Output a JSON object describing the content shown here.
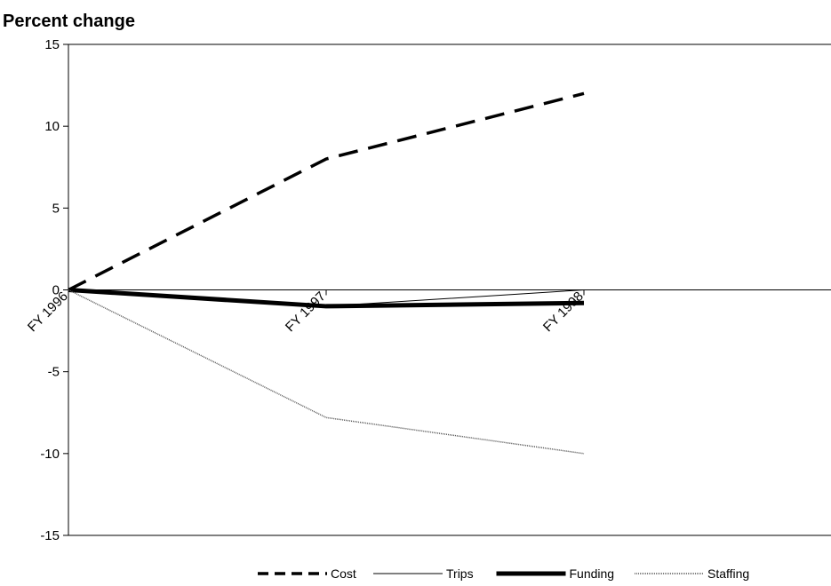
{
  "chart_data": {
    "type": "line",
    "title": "Percent change",
    "xlabel": "",
    "ylabel": "",
    "categories": [
      "FY 1996",
      "FY 1997",
      "FY 1998"
    ],
    "ylim": [
      -15,
      15
    ],
    "yticks": [
      15,
      10,
      5,
      0,
      -5,
      -10,
      -15
    ],
    "grid": false,
    "legend_position": "bottom-center",
    "series": [
      {
        "name": "Cost",
        "values": [
          0,
          8,
          12
        ],
        "style": "dashed",
        "color": "#000000"
      },
      {
        "name": "Trips",
        "values": [
          0,
          -1,
          0
        ],
        "style": "thin",
        "color": "#000000"
      },
      {
        "name": "Funding",
        "values": [
          0,
          -1,
          -0.8
        ],
        "style": "thick",
        "color": "#000000"
      },
      {
        "name": "Staffing",
        "values": [
          0,
          -7.8,
          -10
        ],
        "style": "light",
        "color": "#555555"
      }
    ]
  }
}
